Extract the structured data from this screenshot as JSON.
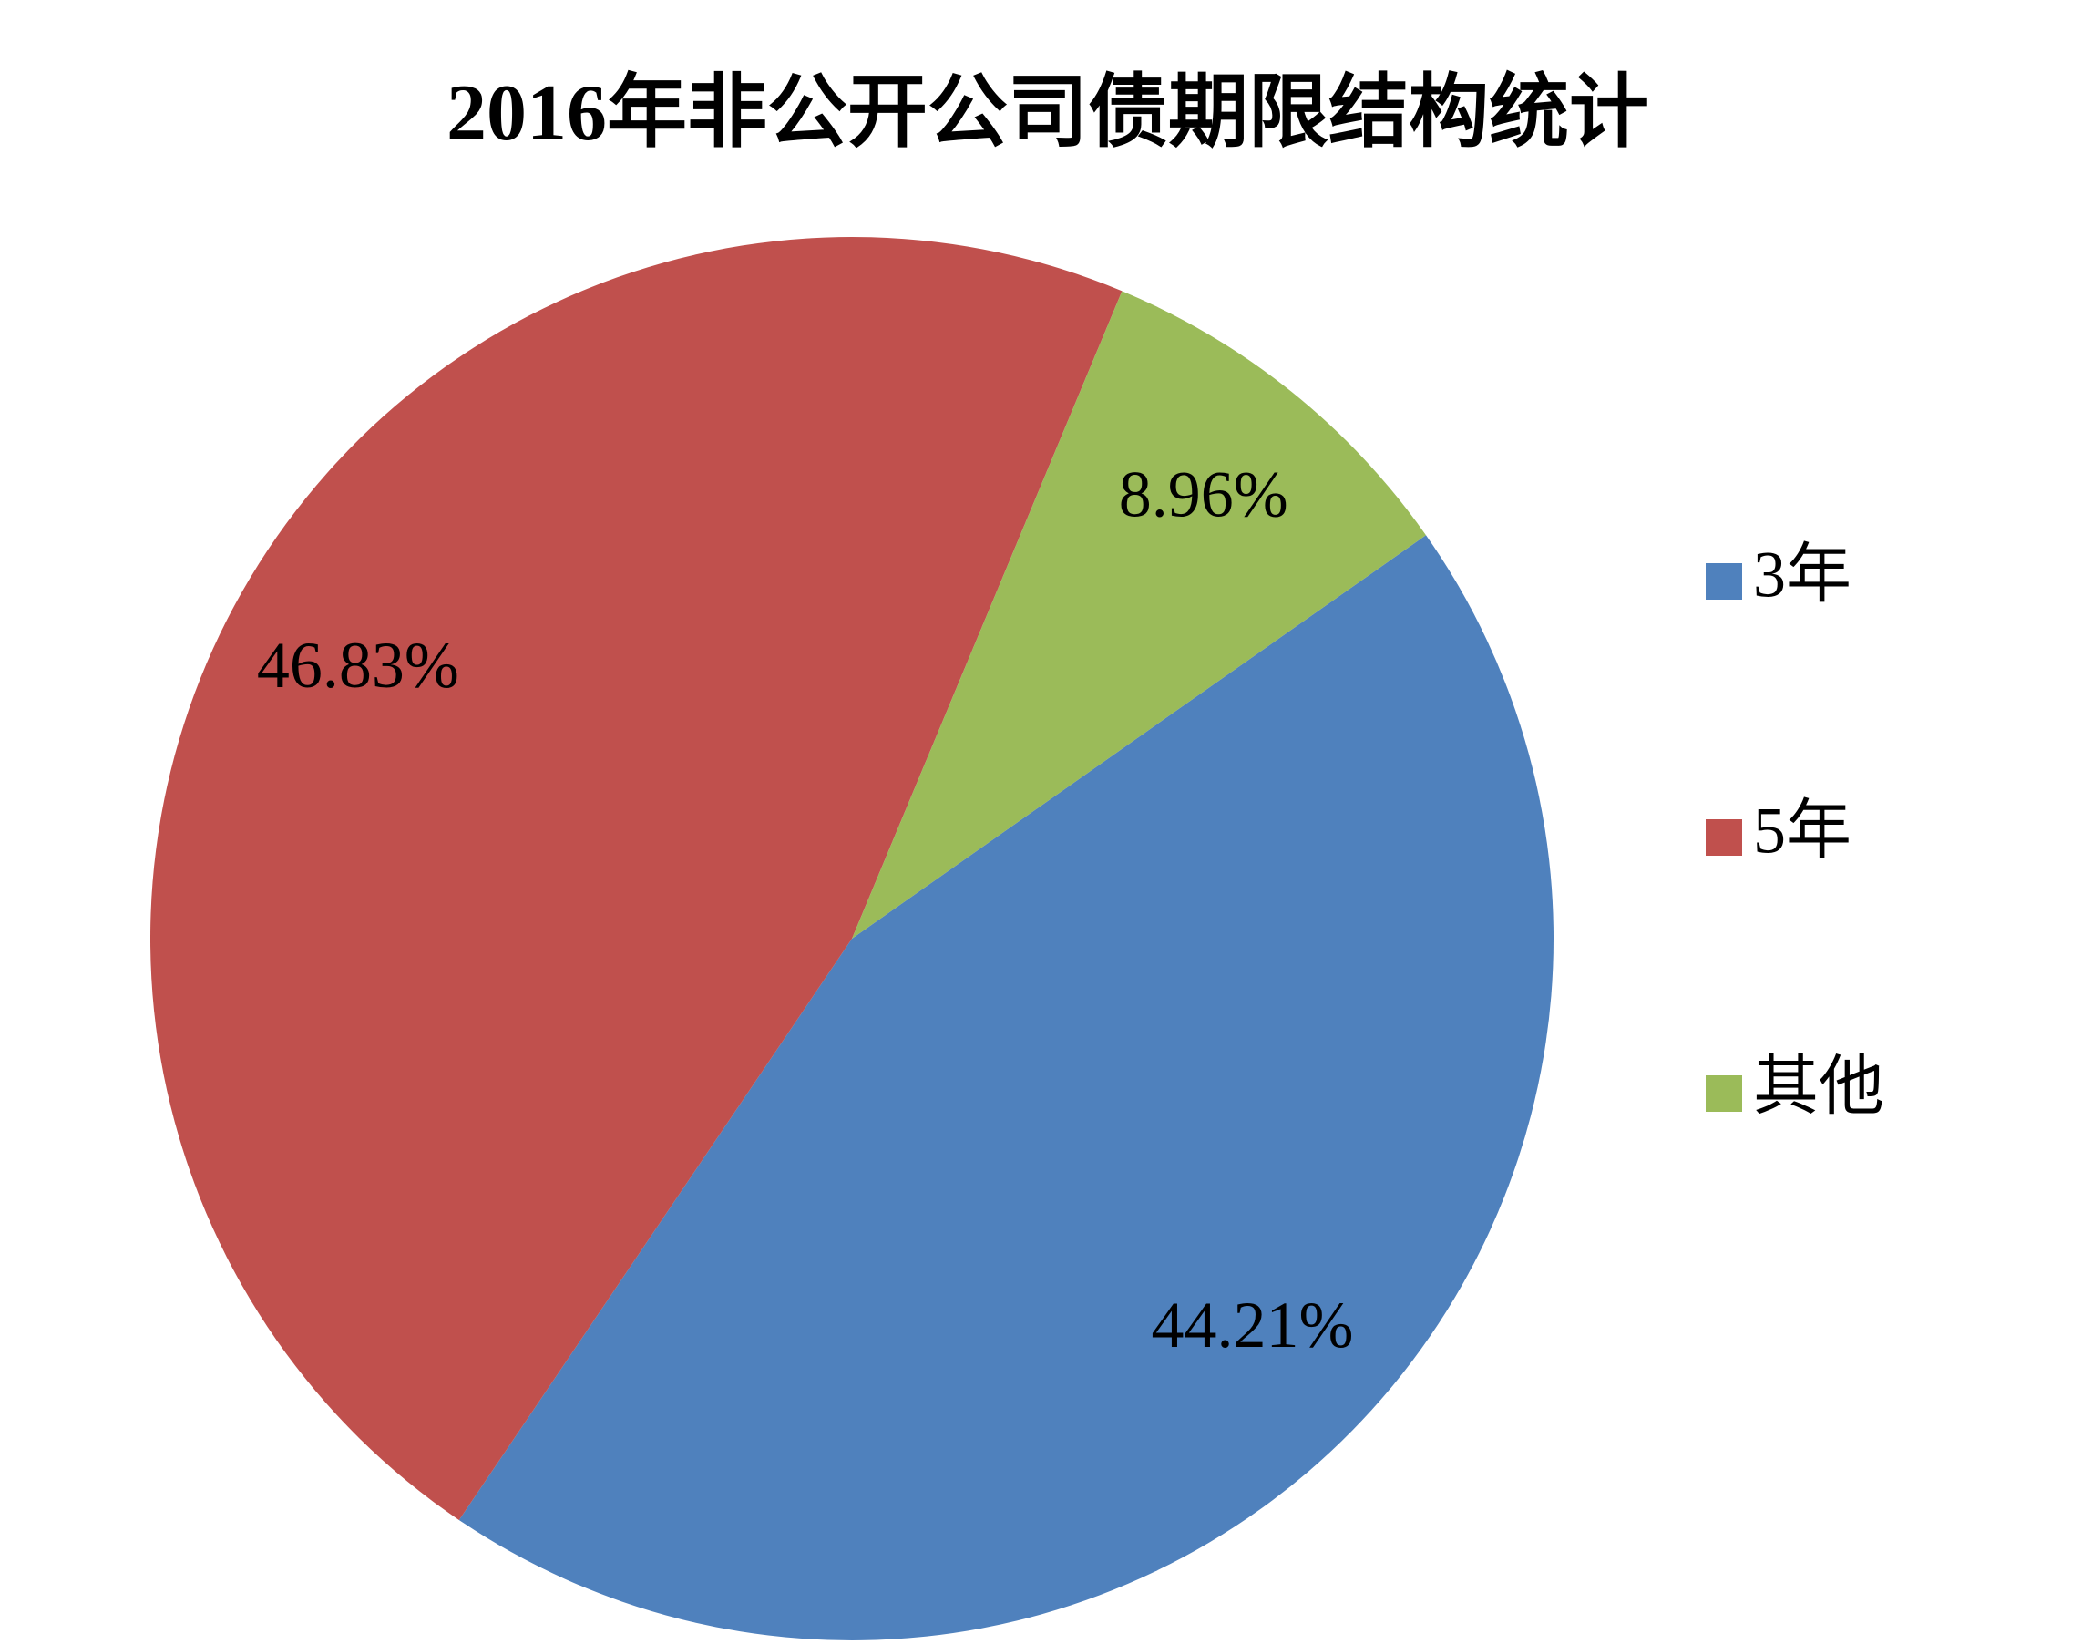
{
  "chart_data": {
    "type": "pie",
    "title": "2016年非公开公司债期限结构统计",
    "categories": [
      "3年",
      "5年",
      "其他"
    ],
    "values": [
      44.21,
      46.83,
      8.96
    ],
    "value_labels": [
      "44.21%",
      "46.83%",
      "8.96%"
    ],
    "colors": [
      "#4f81bd",
      "#c0504d",
      "#9bbb59"
    ],
    "legend": "right"
  }
}
